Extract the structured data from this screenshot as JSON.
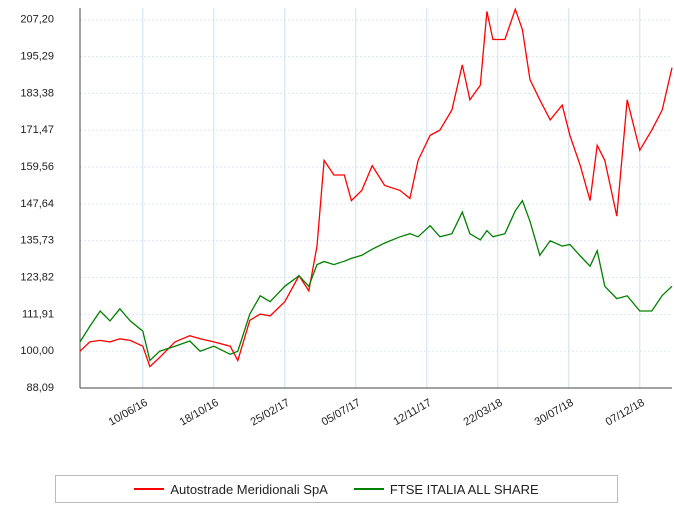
{
  "chart_data": {
    "type": "line",
    "x": [
      "2016-02-16",
      "2016-03-05",
      "2016-03-24",
      "2016-04-11",
      "2016-04-29",
      "2016-05-18",
      "2016-06-10",
      "2016-06-23",
      "2016-07-11",
      "2016-08-08",
      "2016-09-04",
      "2016-09-23",
      "2016-10-18",
      "2016-11-17",
      "2016-12-01",
      "2016-12-23",
      "2017-01-11",
      "2017-01-29",
      "2017-02-25",
      "2017-03-23",
      "2017-04-10",
      "2017-04-25",
      "2017-05-08",
      "2017-05-26",
      "2017-06-14",
      "2017-06-27",
      "2017-07-16",
      "2017-08-04",
      "2017-08-27",
      "2017-09-24",
      "2017-10-12",
      "2017-10-27",
      "2017-11-18",
      "2017-12-06",
      "2017-12-28",
      "2018-01-16",
      "2018-01-30",
      "2018-02-18",
      "2018-03-02",
      "2018-03-13",
      "2018-04-04",
      "2018-04-23",
      "2018-05-06",
      "2018-05-20",
      "2018-06-07",
      "2018-06-26",
      "2018-07-18",
      "2018-08-01",
      "2018-08-20",
      "2018-09-07",
      "2018-09-20",
      "2018-10-04",
      "2018-10-26",
      "2018-11-14",
      "2018-12-07",
      "2018-12-29",
      "2019-01-17",
      "2019-02-04"
    ],
    "series": [
      {
        "name": "Autostrade Meridionali SpA",
        "color": "#ff0000",
        "values": [
          100,
          103,
          103.5,
          103,
          104,
          103.5,
          101.6,
          95,
          98,
          103,
          105,
          104,
          103,
          101.6,
          97,
          110,
          112,
          111.4,
          116,
          124.4,
          119.5,
          134,
          161.7,
          157,
          157,
          148.7,
          152,
          160,
          153.6,
          152,
          149.4,
          161.7,
          169.8,
          171.5,
          178,
          192.6,
          181.3,
          186,
          209.9,
          200.8,
          200.8,
          210.6,
          204,
          187.8,
          181.3,
          174.8,
          179.6,
          169.8,
          160,
          148.7,
          166.6,
          161.7,
          143.7,
          181.3,
          165,
          171.5,
          178,
          191.7
        ]
      },
      {
        "name": "FTSE ITALIA ALL SHARE",
        "color": "#008000",
        "values": [
          103,
          108,
          113,
          109.8,
          113.7,
          109.8,
          106.5,
          97,
          100,
          101.6,
          103.3,
          100,
          101.6,
          99,
          100,
          112,
          117.9,
          116,
          121,
          124.4,
          121,
          128,
          129,
          128,
          129.1,
          130,
          131,
          133,
          135,
          137,
          138,
          137,
          140.6,
          137,
          138,
          145,
          138,
          136,
          139,
          137,
          138,
          145.4,
          148.7,
          142,
          131,
          135.7,
          134,
          134.5,
          130.8,
          127.5,
          132.5,
          121,
          117,
          117.9,
          113,
          113,
          118,
          121
        ]
      }
    ],
    "xlim": [
      "2016-02-16",
      "2019-02-04"
    ],
    "xticks": [
      {
        "value": "2016-06-10",
        "label": "10/06/16"
      },
      {
        "value": "2016-10-18",
        "label": "18/10/16"
      },
      {
        "value": "2017-02-25",
        "label": "25/02/17"
      },
      {
        "value": "2017-07-05",
        "label": "05/07/17"
      },
      {
        "value": "2017-11-12",
        "label": "12/11/17"
      },
      {
        "value": "2018-03-22",
        "label": "22/03/18"
      },
      {
        "value": "2018-07-30",
        "label": "30/07/18"
      },
      {
        "value": "2018-12-07",
        "label": "07/12/18"
      }
    ],
    "ylim": [
      88.09,
      211
    ],
    "yticks": [
      {
        "value": 88.09,
        "label": "88,09"
      },
      {
        "value": 100,
        "label": "100,00"
      },
      {
        "value": 111.91,
        "label": "111,91"
      },
      {
        "value": 123.82,
        "label": "123,82"
      },
      {
        "value": 135.73,
        "label": "135,73"
      },
      {
        "value": 147.64,
        "label": "147,64"
      },
      {
        "value": 159.56,
        "label": "159,56"
      },
      {
        "value": 171.47,
        "label": "171,47"
      },
      {
        "value": 183.38,
        "label": "183,38"
      },
      {
        "value": 195.29,
        "label": "195,29"
      },
      {
        "value": 207.2,
        "label": "207,20"
      }
    ],
    "grid": true,
    "legend": "bottom"
  }
}
